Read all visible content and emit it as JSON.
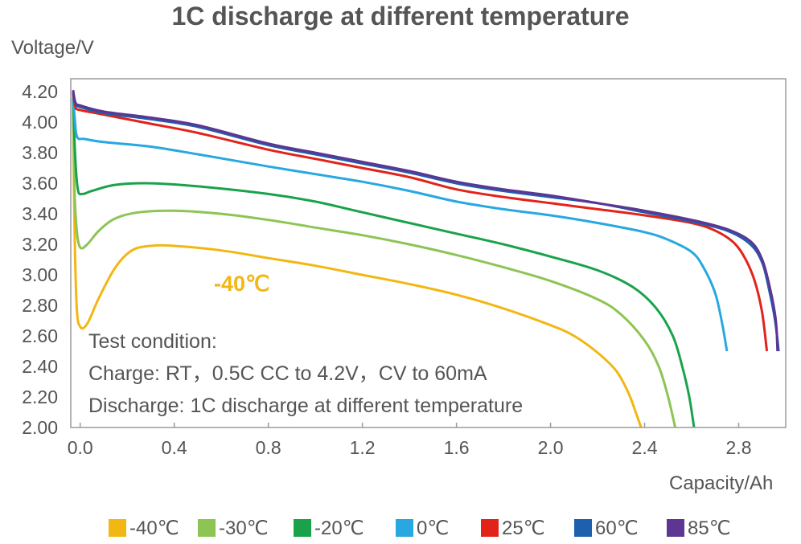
{
  "chart_data": {
    "type": "line",
    "title": "1C discharge at different temperature",
    "ylabel": "Voltage/V",
    "xlabel": "Capacity/Ah",
    "xlim": [
      -0.04,
      3.0
    ],
    "ylim": [
      2.0,
      4.2
    ],
    "xticks": [
      "0.0",
      "0.4",
      "0.8",
      "1.2",
      "1.6",
      "2.0",
      "2.4",
      "2.8"
    ],
    "xtick_values": [
      0.0,
      0.4,
      0.8,
      1.2,
      1.6,
      2.0,
      2.4,
      2.8
    ],
    "yticks": [
      "4.20",
      "4.00",
      "3.80",
      "3.60",
      "3.40",
      "3.20",
      "3.00",
      "2.80",
      "2.60",
      "2.40",
      "2.20",
      "2.00"
    ],
    "ytick_values": [
      4.2,
      4.0,
      3.8,
      3.6,
      3.4,
      3.2,
      3.0,
      2.8,
      2.6,
      2.4,
      2.2,
      2.0
    ],
    "grid": false,
    "legend_position": "bottom",
    "annotation": {
      "text": "-40℃",
      "color": "#f2b713"
    },
    "notes": [
      "Test condition:",
      "Charge: RT，0.5C CC to 4.2V，CV to 60mA",
      "Discharge: 1C discharge at different temperature"
    ],
    "series": [
      {
        "name": "-40℃",
        "color": "#f2b713",
        "points": [
          [
            -0.03,
            4.15
          ],
          [
            -0.025,
            3.4
          ],
          [
            -0.015,
            2.8
          ],
          [
            0.0,
            2.66
          ],
          [
            0.03,
            2.68
          ],
          [
            0.08,
            2.85
          ],
          [
            0.15,
            3.05
          ],
          [
            0.22,
            3.16
          ],
          [
            0.3,
            3.19
          ],
          [
            0.4,
            3.19
          ],
          [
            0.6,
            3.16
          ],
          [
            0.8,
            3.11
          ],
          [
            1.0,
            3.06
          ],
          [
            1.2,
            3.0
          ],
          [
            1.4,
            2.94
          ],
          [
            1.6,
            2.87
          ],
          [
            1.8,
            2.78
          ],
          [
            2.0,
            2.67
          ],
          [
            2.1,
            2.6
          ],
          [
            2.2,
            2.49
          ],
          [
            2.28,
            2.37
          ],
          [
            2.33,
            2.23
          ],
          [
            2.36,
            2.11
          ],
          [
            2.385,
            2.0
          ]
        ]
      },
      {
        "name": "-30℃",
        "color": "#8dc454",
        "points": [
          [
            -0.03,
            4.15
          ],
          [
            -0.025,
            3.6
          ],
          [
            -0.015,
            3.3
          ],
          [
            0.0,
            3.18
          ],
          [
            0.03,
            3.2
          ],
          [
            0.08,
            3.29
          ],
          [
            0.15,
            3.37
          ],
          [
            0.25,
            3.41
          ],
          [
            0.4,
            3.42
          ],
          [
            0.6,
            3.4
          ],
          [
            0.8,
            3.36
          ],
          [
            1.0,
            3.31
          ],
          [
            1.2,
            3.26
          ],
          [
            1.4,
            3.2
          ],
          [
            1.6,
            3.13
          ],
          [
            1.8,
            3.05
          ],
          [
            2.0,
            2.96
          ],
          [
            2.2,
            2.84
          ],
          [
            2.3,
            2.74
          ],
          [
            2.4,
            2.57
          ],
          [
            2.46,
            2.4
          ],
          [
            2.5,
            2.2
          ],
          [
            2.53,
            2.0
          ]
        ]
      },
      {
        "name": "-20℃",
        "color": "#1aa24b",
        "points": [
          [
            -0.03,
            4.16
          ],
          [
            -0.022,
            3.8
          ],
          [
            -0.01,
            3.56
          ],
          [
            0.01,
            3.53
          ],
          [
            0.05,
            3.55
          ],
          [
            0.15,
            3.59
          ],
          [
            0.3,
            3.6
          ],
          [
            0.5,
            3.58
          ],
          [
            0.8,
            3.53
          ],
          [
            1.0,
            3.48
          ],
          [
            1.2,
            3.41
          ],
          [
            1.4,
            3.34
          ],
          [
            1.6,
            3.27
          ],
          [
            1.8,
            3.2
          ],
          [
            2.0,
            3.12
          ],
          [
            2.2,
            3.03
          ],
          [
            2.35,
            2.92
          ],
          [
            2.45,
            2.78
          ],
          [
            2.52,
            2.6
          ],
          [
            2.56,
            2.4
          ],
          [
            2.59,
            2.2
          ],
          [
            2.61,
            2.0
          ]
        ]
      },
      {
        "name": "0℃",
        "color": "#27a8e0",
        "points": [
          [
            -0.03,
            4.18
          ],
          [
            -0.022,
            4.0
          ],
          [
            -0.012,
            3.9
          ],
          [
            0.02,
            3.89
          ],
          [
            0.1,
            3.87
          ],
          [
            0.3,
            3.84
          ],
          [
            0.5,
            3.79
          ],
          [
            0.8,
            3.71
          ],
          [
            1.0,
            3.66
          ],
          [
            1.2,
            3.61
          ],
          [
            1.4,
            3.55
          ],
          [
            1.6,
            3.48
          ],
          [
            1.8,
            3.43
          ],
          [
            2.0,
            3.39
          ],
          [
            2.2,
            3.34
          ],
          [
            2.4,
            3.28
          ],
          [
            2.5,
            3.23
          ],
          [
            2.6,
            3.15
          ],
          [
            2.65,
            3.05
          ],
          [
            2.7,
            2.88
          ],
          [
            2.73,
            2.68
          ],
          [
            2.75,
            2.5
          ]
        ]
      },
      {
        "name": "25℃",
        "color": "#e2231a",
        "points": [
          [
            -0.03,
            4.19
          ],
          [
            -0.02,
            4.1
          ],
          [
            0.0,
            4.08
          ],
          [
            0.1,
            4.05
          ],
          [
            0.3,
            3.99
          ],
          [
            0.5,
            3.93
          ],
          [
            0.8,
            3.82
          ],
          [
            1.0,
            3.76
          ],
          [
            1.2,
            3.7
          ],
          [
            1.4,
            3.64
          ],
          [
            1.6,
            3.56
          ],
          [
            1.8,
            3.51
          ],
          [
            2.0,
            3.47
          ],
          [
            2.2,
            3.43
          ],
          [
            2.4,
            3.39
          ],
          [
            2.6,
            3.34
          ],
          [
            2.7,
            3.29
          ],
          [
            2.78,
            3.21
          ],
          [
            2.83,
            3.1
          ],
          [
            2.87,
            2.95
          ],
          [
            2.9,
            2.75
          ],
          [
            2.92,
            2.5
          ]
        ]
      },
      {
        "name": "60℃",
        "color": "#1e5fae",
        "points": [
          [
            -0.03,
            4.2
          ],
          [
            -0.02,
            4.12
          ],
          [
            0.0,
            4.1
          ],
          [
            0.1,
            4.06
          ],
          [
            0.3,
            4.02
          ],
          [
            0.5,
            3.97
          ],
          [
            0.8,
            3.85
          ],
          [
            1.0,
            3.79
          ],
          [
            1.2,
            3.73
          ],
          [
            1.4,
            3.67
          ],
          [
            1.6,
            3.6
          ],
          [
            1.8,
            3.55
          ],
          [
            2.0,
            3.51
          ],
          [
            2.2,
            3.47
          ],
          [
            2.4,
            3.41
          ],
          [
            2.6,
            3.35
          ],
          [
            2.75,
            3.29
          ],
          [
            2.85,
            3.2
          ],
          [
            2.9,
            3.08
          ],
          [
            2.93,
            2.9
          ],
          [
            2.955,
            2.7
          ],
          [
            2.97,
            2.5
          ]
        ]
      },
      {
        "name": "85℃",
        "color": "#5d3592",
        "points": [
          [
            -0.03,
            4.21
          ],
          [
            -0.02,
            4.13
          ],
          [
            0.0,
            4.11
          ],
          [
            0.1,
            4.07
          ],
          [
            0.3,
            4.03
          ],
          [
            0.5,
            3.98
          ],
          [
            0.8,
            3.86
          ],
          [
            1.0,
            3.8
          ],
          [
            1.2,
            3.74
          ],
          [
            1.4,
            3.68
          ],
          [
            1.6,
            3.61
          ],
          [
            1.8,
            3.56
          ],
          [
            2.0,
            3.52
          ],
          [
            2.2,
            3.47
          ],
          [
            2.4,
            3.42
          ],
          [
            2.6,
            3.36
          ],
          [
            2.75,
            3.3
          ],
          [
            2.85,
            3.22
          ],
          [
            2.9,
            3.1
          ],
          [
            2.935,
            2.9
          ],
          [
            2.958,
            2.7
          ],
          [
            2.965,
            2.5
          ]
        ]
      }
    ]
  }
}
